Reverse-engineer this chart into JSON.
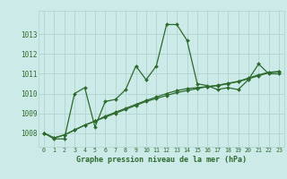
{
  "title": "Graphe pression niveau de la mer (hPa)",
  "background_color": "#cceae7",
  "grid_color": "#b0d4d0",
  "line_color": "#2d6a2d",
  "marker_color": "#2d6a2d",
  "xlim": [
    -0.5,
    23.5
  ],
  "ylim": [
    1007.3,
    1014.2
  ],
  "yticks": [
    1008,
    1009,
    1010,
    1011,
    1012,
    1013
  ],
  "xticks": [
    0,
    1,
    2,
    3,
    4,
    5,
    6,
    7,
    8,
    9,
    10,
    11,
    12,
    13,
    14,
    15,
    16,
    17,
    18,
    19,
    20,
    21,
    22,
    23
  ],
  "series1_y": [
    1008.0,
    1007.7,
    1007.7,
    1010.0,
    1010.3,
    1008.3,
    1009.6,
    1009.7,
    1010.2,
    1011.4,
    1010.7,
    1011.4,
    1013.5,
    1013.5,
    1012.7,
    1010.5,
    1010.4,
    1010.2,
    1010.3,
    1010.2,
    1010.7,
    1011.5,
    1011.0,
    1011.0
  ],
  "series2_y": [
    1008.0,
    1007.75,
    1007.9,
    1008.15,
    1008.4,
    1008.6,
    1008.8,
    1009.0,
    1009.2,
    1009.4,
    1009.6,
    1009.75,
    1009.9,
    1010.05,
    1010.15,
    1010.25,
    1010.35,
    1010.4,
    1010.5,
    1010.6,
    1010.75,
    1010.9,
    1011.05,
    1011.1
  ],
  "series3_y": [
    1008.0,
    1007.75,
    1007.9,
    1008.15,
    1008.4,
    1008.6,
    1008.85,
    1009.05,
    1009.25,
    1009.45,
    1009.65,
    1009.82,
    1010.0,
    1010.15,
    1010.25,
    1010.3,
    1010.35,
    1010.42,
    1010.52,
    1010.62,
    1010.78,
    1010.95,
    1011.08,
    1011.12
  ]
}
